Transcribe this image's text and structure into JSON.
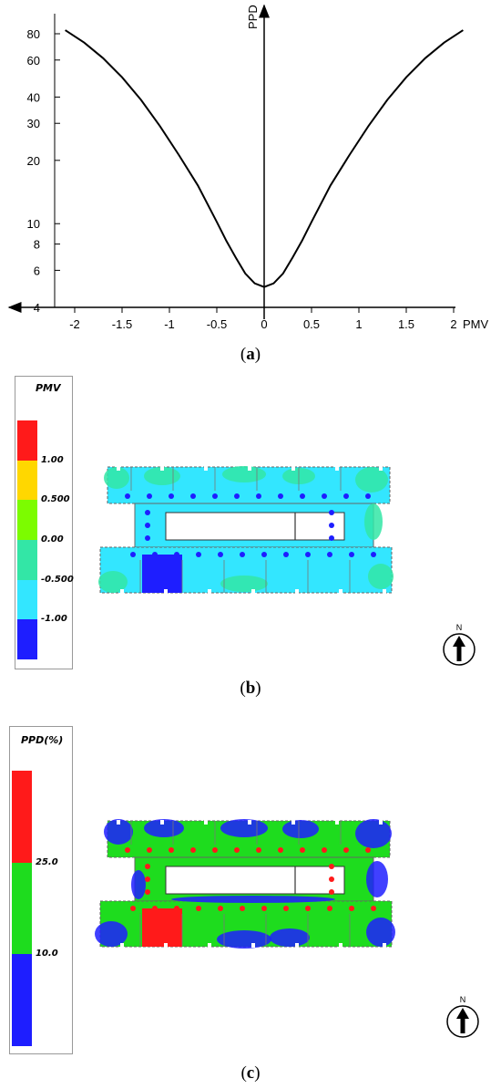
{
  "chart_data": [
    {
      "type": "line",
      "title": "",
      "xlabel": "PMV",
      "ylabel": "PPD",
      "xlim": [
        -2.2,
        2.2
      ],
      "ylim": [
        4,
        100
      ],
      "y_scale": "log",
      "x_ticks": [
        -2,
        -1.5,
        -1,
        -0.5,
        0,
        0.5,
        1,
        1.5,
        2
      ],
      "y_ticks": [
        4,
        6,
        8,
        10,
        20,
        30,
        40,
        60,
        80
      ],
      "x_tick_labels": [
        "-2",
        "-1.5",
        "-1",
        "-0.5",
        "0",
        "0.5",
        "1",
        "1.5",
        "2"
      ],
      "y_tick_labels": [
        "4",
        "6",
        "8",
        "10",
        "20",
        "30",
        "40",
        "60",
        "80"
      ],
      "series": [
        {
          "x": [
            -2.1,
            -1.9,
            -1.7,
            -1.5,
            -1.3,
            -1.1,
            -0.9,
            -0.7,
            -0.5,
            -0.4,
            -0.3,
            -0.2,
            -0.1,
            0,
            0.1,
            0.2,
            0.3,
            0.4,
            0.5,
            0.7,
            0.9,
            1.1,
            1.3,
            1.5,
            1.7,
            1.9,
            2.1
          ],
          "y": [
            83.2,
            72.6,
            61.2,
            49.7,
            38.8,
            29.1,
            21.2,
            15.2,
            10.2,
            8.3,
            6.9,
            5.8,
            5.2,
            5.0,
            5.2,
            5.8,
            6.9,
            8.3,
            10.2,
            15.2,
            21.2,
            29.1,
            38.8,
            49.7,
            61.2,
            72.6,
            83.2
          ],
          "color": "#000000"
        }
      ],
      "grid": false,
      "caption": "(a)"
    },
    {
      "type": "heatmap",
      "title": "PMV",
      "legend_levels": [
        "1.00",
        "0.500",
        "0.00",
        "-0.500",
        "-1.00"
      ],
      "legend_colors": [
        "#ff1a1a",
        "#ffd700",
        "#7cfc00",
        "#33e6a6",
        "#33e6ff",
        "#1e1eff"
      ],
      "north_label": "N",
      "caption": "(b)"
    },
    {
      "type": "heatmap",
      "title": "PPD(%)",
      "legend_levels": [
        "25.0",
        "10.0"
      ],
      "legend_colors": [
        "#ff1a1a",
        "#1edc1e",
        "#1e1eff"
      ],
      "north_label": "N",
      "caption": "(c)"
    }
  ]
}
